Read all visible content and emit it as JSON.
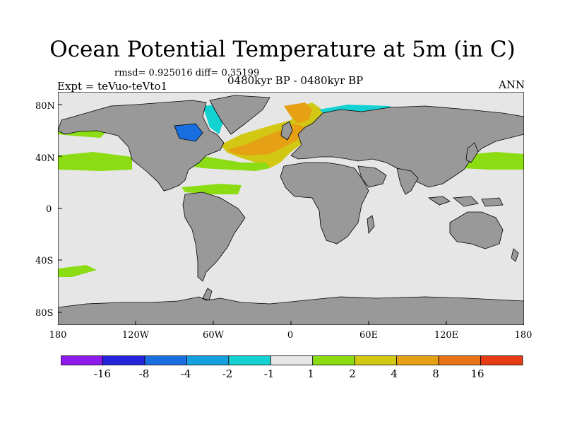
{
  "title": "Ocean Potential Temperature at 5m (in C)",
  "stats": "rmsd= 0.925016 diff= 0.35199",
  "experiment": "Expt = teVuo-teVto1",
  "period": "0480kyr BP - 0480kyr BP",
  "season": "ANN",
  "lat_labels": [
    "80N",
    "40N",
    "0",
    "40S",
    "80S"
  ],
  "lon_labels": [
    "180",
    "120W",
    "60W",
    "0",
    "60E",
    "120E",
    "180"
  ],
  "colors": {
    "land": "#999999",
    "ocean_near_zero": "#e6e6e6",
    "frame": "#000000"
  },
  "colorbar": {
    "colors": [
      "#8c1aeb",
      "#2424db",
      "#1a6fe0",
      "#14a0dc",
      "#14d2d2",
      "#e6e6e6",
      "#8cdc14",
      "#d2c814",
      "#e6a014",
      "#e67314",
      "#e63c14"
    ],
    "labels": [
      "-16",
      "-8",
      "-4",
      "-2",
      "-1",
      "1",
      "2",
      "4",
      "8",
      "16"
    ]
  }
}
